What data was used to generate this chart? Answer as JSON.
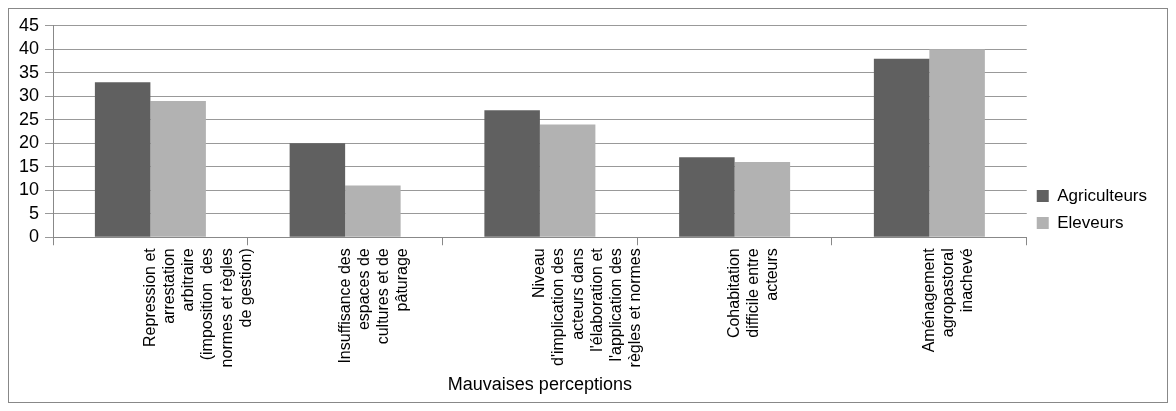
{
  "chart_data": {
    "type": "bar",
    "xlabel": "Mauvaises perceptions",
    "categories": [
      "Repression et arrestation arbitraire (imposition  des normes et règles de gestion)",
      "Insuffisance des espaces de cultures et de pâturage",
      "Niveau d'implication des acteurs dans l'élaboration et l'application des règles et normes",
      "Cohabitation difficile entre acteurs",
      "Aménagement agropastoral inachevé"
    ],
    "series": [
      {
        "name": "Agriculteurs",
        "color": "#606060",
        "values": [
          33,
          20,
          27,
          17,
          38
        ]
      },
      {
        "name": "Eleveurs",
        "color": "#b2b2b2",
        "values": [
          29,
          11,
          24,
          16,
          40
        ]
      }
    ],
    "ylim": [
      0,
      45
    ],
    "yticks": [
      0,
      5,
      10,
      15,
      20,
      25,
      30,
      35,
      40,
      45
    ],
    "grid": "y",
    "legend": "right"
  }
}
